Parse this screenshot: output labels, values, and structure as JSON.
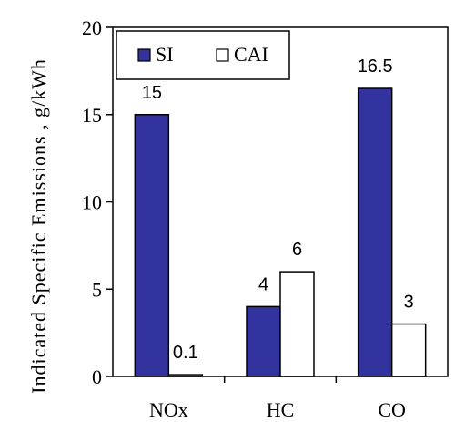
{
  "chart_data": {
    "type": "bar",
    "categories": [
      "NOx",
      "HC",
      "CO"
    ],
    "series": [
      {
        "name": "SI",
        "values": [
          15,
          4,
          16.5
        ],
        "labels": [
          "15",
          "4",
          "16.5"
        ],
        "color": "#3333a0"
      },
      {
        "name": "CAI",
        "values": [
          0.1,
          6,
          3
        ],
        "labels": [
          "0.1",
          "6",
          "3"
        ],
        "color": "#ffffff"
      }
    ],
    "ylabel": "Indicated Specific Emissions , g/kWh",
    "ylim": [
      0,
      20
    ],
    "yticks": [
      0,
      5,
      10,
      15,
      20
    ],
    "legend_placement": "top-left",
    "grid": false
  }
}
